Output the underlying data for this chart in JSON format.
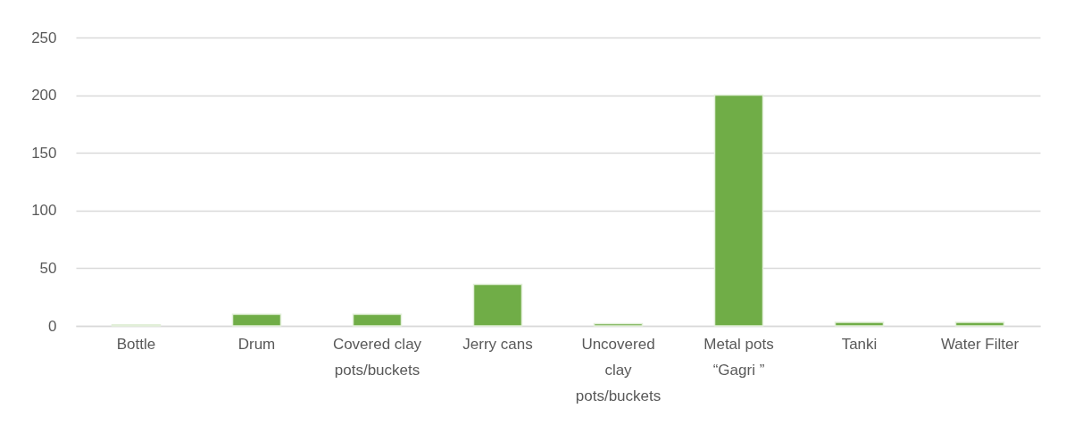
{
  "chart_data": {
    "type": "bar",
    "categories": [
      "Bottle",
      "Drum",
      "Covered clay pots/buckets",
      "Jerry cans",
      "Uncovered clay pots/buckets",
      "Metal pots “Gagri ”",
      "Tanki",
      "Water Filter"
    ],
    "values": [
      1,
      10,
      10,
      36,
      2,
      200,
      3,
      3
    ],
    "color": "#70ad47",
    "ylim": [
      0,
      250
    ],
    "yticks": [
      0,
      50,
      100,
      150,
      200,
      250
    ],
    "grid": "y"
  }
}
